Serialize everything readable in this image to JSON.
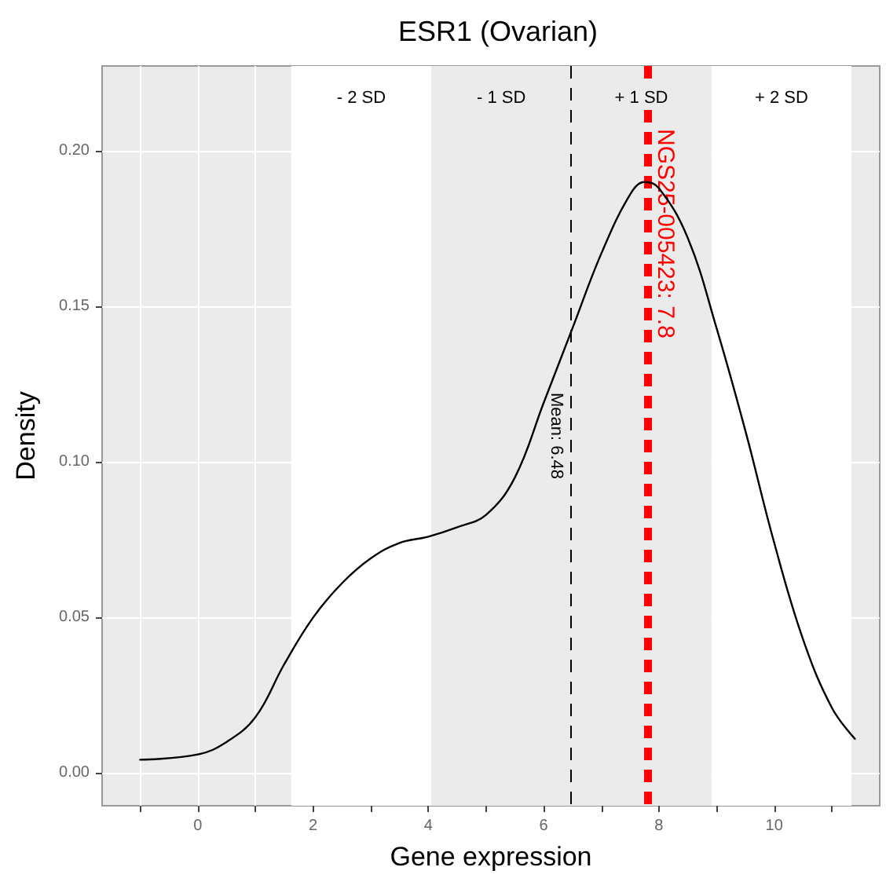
{
  "chart_data": {
    "type": "line",
    "title": "ESR1 (Ovarian)",
    "xlabel": "Gene expression",
    "ylabel": "Density",
    "series": [
      {
        "color": "#000000",
        "x": [
          -1,
          0,
          0.5,
          1,
          1.5,
          2,
          2.5,
          3,
          3.5,
          4,
          4.5,
          5,
          5.5,
          6,
          6.5,
          7,
          7.5,
          7.75,
          8,
          8.5,
          9,
          9.5,
          10,
          10.5,
          11,
          11.4
        ],
        "values": [
          0.0043,
          0.006,
          0.01,
          0.018,
          0.035,
          0.05,
          0.061,
          0.069,
          0.074,
          0.076,
          0.079,
          0.083,
          0.095,
          0.119,
          0.143,
          0.167,
          0.186,
          0.19,
          0.188,
          0.172,
          0.143,
          0.11,
          0.074,
          0.043,
          0.021,
          0.011
        ]
      }
    ],
    "xlim": [
      -1.66,
      11.83
    ],
    "ylim": [
      -0.0105,
      0.2273
    ],
    "xticks": [
      {
        "value": -1,
        "label": null
      },
      0,
      {
        "value": 1,
        "label": null
      },
      2,
      {
        "value": 3,
        "label": null
      },
      4,
      {
        "value": 5,
        "label": null
      },
      6,
      {
        "value": 7,
        "label": null
      },
      8,
      {
        "value": 9,
        "label": null
      },
      10,
      {
        "value": 11,
        "label": null
      }
    ],
    "yticks": [
      {
        "value": 0,
        "label": "0.00"
      },
      {
        "value": 0.05,
        "label": "0.05"
      },
      {
        "value": 0.1,
        "label": "0.10"
      },
      {
        "value": 0.15,
        "label": "0.15"
      },
      {
        "value": 0.2,
        "label": "0.20"
      }
    ],
    "bands": [
      {
        "axis": "x",
        "from": 1.62,
        "to": 4.05,
        "label": "- 2 SD",
        "color": "#ffffff"
      },
      {
        "axis": "x",
        "from": 4.05,
        "to": 6.48,
        "label": "- 1 SD",
        "color": "#ebebeb"
      },
      {
        "axis": "x",
        "from": 6.48,
        "to": 8.91,
        "label": "+ 1 SD",
        "color": "#ebebeb"
      },
      {
        "axis": "x",
        "from": 8.91,
        "to": 11.34,
        "label": "+ 2 SD",
        "color": "#ffffff"
      }
    ],
    "ref_lines": [
      {
        "axis": "x",
        "value": 6.48,
        "label": "Mean: 6.48",
        "color": "#000000",
        "line_style": "dashed"
      },
      {
        "axis": "x",
        "value": 7.8,
        "label": "NGS25-005423: 7.8",
        "color": "#ff0000",
        "line_style": "dashed"
      }
    ],
    "grid": true,
    "marker": "none",
    "line_style": "solid"
  }
}
